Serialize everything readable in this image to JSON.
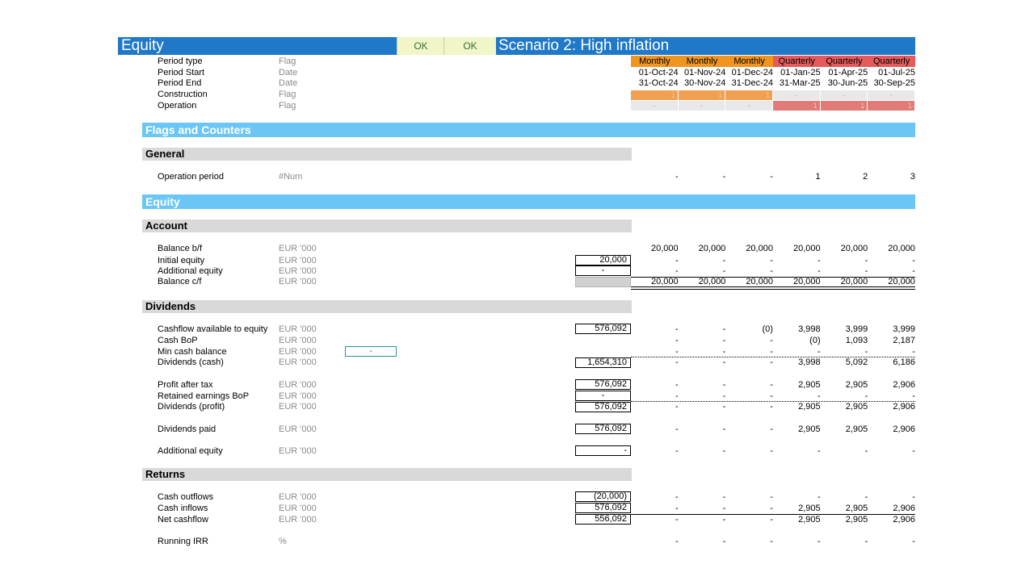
{
  "header": {
    "title": "Equity",
    "ok1": "OK",
    "ok2": "OK",
    "scenario": "Scenario 2: High inflation"
  },
  "timeline": {
    "period_type": {
      "label": "Period type",
      "unit": "Flag",
      "values": [
        "Monthly",
        "Monthly",
        "Monthly",
        "Quarterly",
        "Quarterly",
        "Quarterly"
      ]
    },
    "period_start": {
      "label": "Period Start",
      "unit": "Date",
      "values": [
        "01-Oct-24",
        "01-Nov-24",
        "01-Dec-24",
        "01-Jan-25",
        "01-Apr-25",
        "01-Jul-25"
      ]
    },
    "period_end": {
      "label": "Period End",
      "unit": "Date",
      "values": [
        "31-Oct-24",
        "30-Nov-24",
        "31-Dec-24",
        "31-Mar-25",
        "30-Jun-25",
        "30-Sep-25"
      ]
    },
    "construction": {
      "label": "Construction",
      "unit": "Flag",
      "values": [
        "1",
        "1",
        "1",
        "-",
        "-",
        "-"
      ]
    },
    "operation": {
      "label": "Operation",
      "unit": "Flag",
      "values": [
        "-",
        "-",
        "-",
        "1",
        "1",
        "1"
      ]
    }
  },
  "sections": {
    "flags": "Flags and Counters",
    "general": "General",
    "equity": "Equity",
    "account": "Account",
    "dividends": "Dividends",
    "returns": "Returns"
  },
  "rows": {
    "operation_period": {
      "label": "Operation period",
      "unit": "#Num",
      "values": [
        "-",
        "-",
        "-",
        "1",
        "2",
        "3"
      ]
    },
    "balance_bf": {
      "label": "Balance b/f",
      "unit": "EUR '000",
      "values": [
        "20,000",
        "20,000",
        "20,000",
        "20,000",
        "20,000",
        "20,000"
      ]
    },
    "initial_equity": {
      "label": "Initial equity",
      "unit": "EUR '000",
      "total": "20,000",
      "values": [
        "-",
        "-",
        "-",
        "-",
        "-",
        "-"
      ]
    },
    "additional_equity_acc": {
      "label": "Additional equity",
      "unit": "EUR '000",
      "total": "-",
      "values": [
        "-",
        "-",
        "-",
        "-",
        "-",
        "-"
      ]
    },
    "balance_cf": {
      "label": "Balance c/f",
      "unit": "EUR '000",
      "values": [
        "20,000",
        "20,000",
        "20,000",
        "20,000",
        "20,000",
        "20,000"
      ]
    },
    "cfads_equity": {
      "label": "Cashflow available to equity",
      "unit": "EUR '000",
      "total": "576,092",
      "values": [
        "-",
        "-",
        "(0)",
        "3,998",
        "3,999",
        "3,999"
      ]
    },
    "cash_bop": {
      "label": "Cash BoP",
      "unit": "EUR '000",
      "values": [
        "-",
        "-",
        "-",
        "(0)",
        "1,093",
        "2,187"
      ]
    },
    "min_cash": {
      "label": "Min cash balance",
      "unit": "EUR '000",
      "input": "-",
      "values": [
        "-",
        "-",
        "-",
        "-",
        "-",
        "-"
      ]
    },
    "dividends_cash": {
      "label": "Dividends (cash)",
      "unit": "EUR '000",
      "total": "1,654,310",
      "values": [
        "-",
        "-",
        "-",
        "3,998",
        "5,092",
        "6,186"
      ]
    },
    "pat": {
      "label": "Profit after tax",
      "unit": "EUR '000",
      "total": "576,092",
      "values": [
        "-",
        "-",
        "-",
        "2,905",
        "2,905",
        "2,906"
      ]
    },
    "re_bop": {
      "label": "Retained earnings BoP",
      "unit": "EUR '000",
      "total": "-",
      "values": [
        "-",
        "-",
        "-",
        "-",
        "-",
        "-"
      ]
    },
    "dividends_profit": {
      "label": "Dividends (profit)",
      "unit": "EUR '000",
      "total": "576,092",
      "values": [
        "-",
        "-",
        "-",
        "2,905",
        "2,905",
        "2,906"
      ]
    },
    "dividends_paid": {
      "label": "Dividends paid",
      "unit": "EUR '000",
      "total": "576,092",
      "values": [
        "-",
        "-",
        "-",
        "2,905",
        "2,905",
        "2,906"
      ]
    },
    "additional_equity_div": {
      "label": "Additional equity",
      "unit": "EUR '000",
      "total": "-",
      "values": [
        "-",
        "-",
        "-",
        "-",
        "-",
        "-"
      ]
    },
    "cash_outflows": {
      "label": "Cash outflows",
      "unit": "EUR '000",
      "total": "(20,000)",
      "values": [
        "-",
        "-",
        "-",
        "-",
        "-",
        "-"
      ]
    },
    "cash_inflows": {
      "label": "Cash inflows",
      "unit": "EUR '000",
      "total": "576,092",
      "values": [
        "-",
        "-",
        "-",
        "2,905",
        "2,905",
        "2,906"
      ]
    },
    "net_cashflow": {
      "label": "Net cashflow",
      "unit": "EUR '000",
      "total": "556,092",
      "values": [
        "-",
        "-",
        "-",
        "2,905",
        "2,905",
        "2,906"
      ]
    },
    "running_irr": {
      "label": "Running IRR",
      "unit": "%",
      "values": [
        "-",
        "-",
        "-",
        "-",
        "-",
        "-"
      ]
    }
  }
}
